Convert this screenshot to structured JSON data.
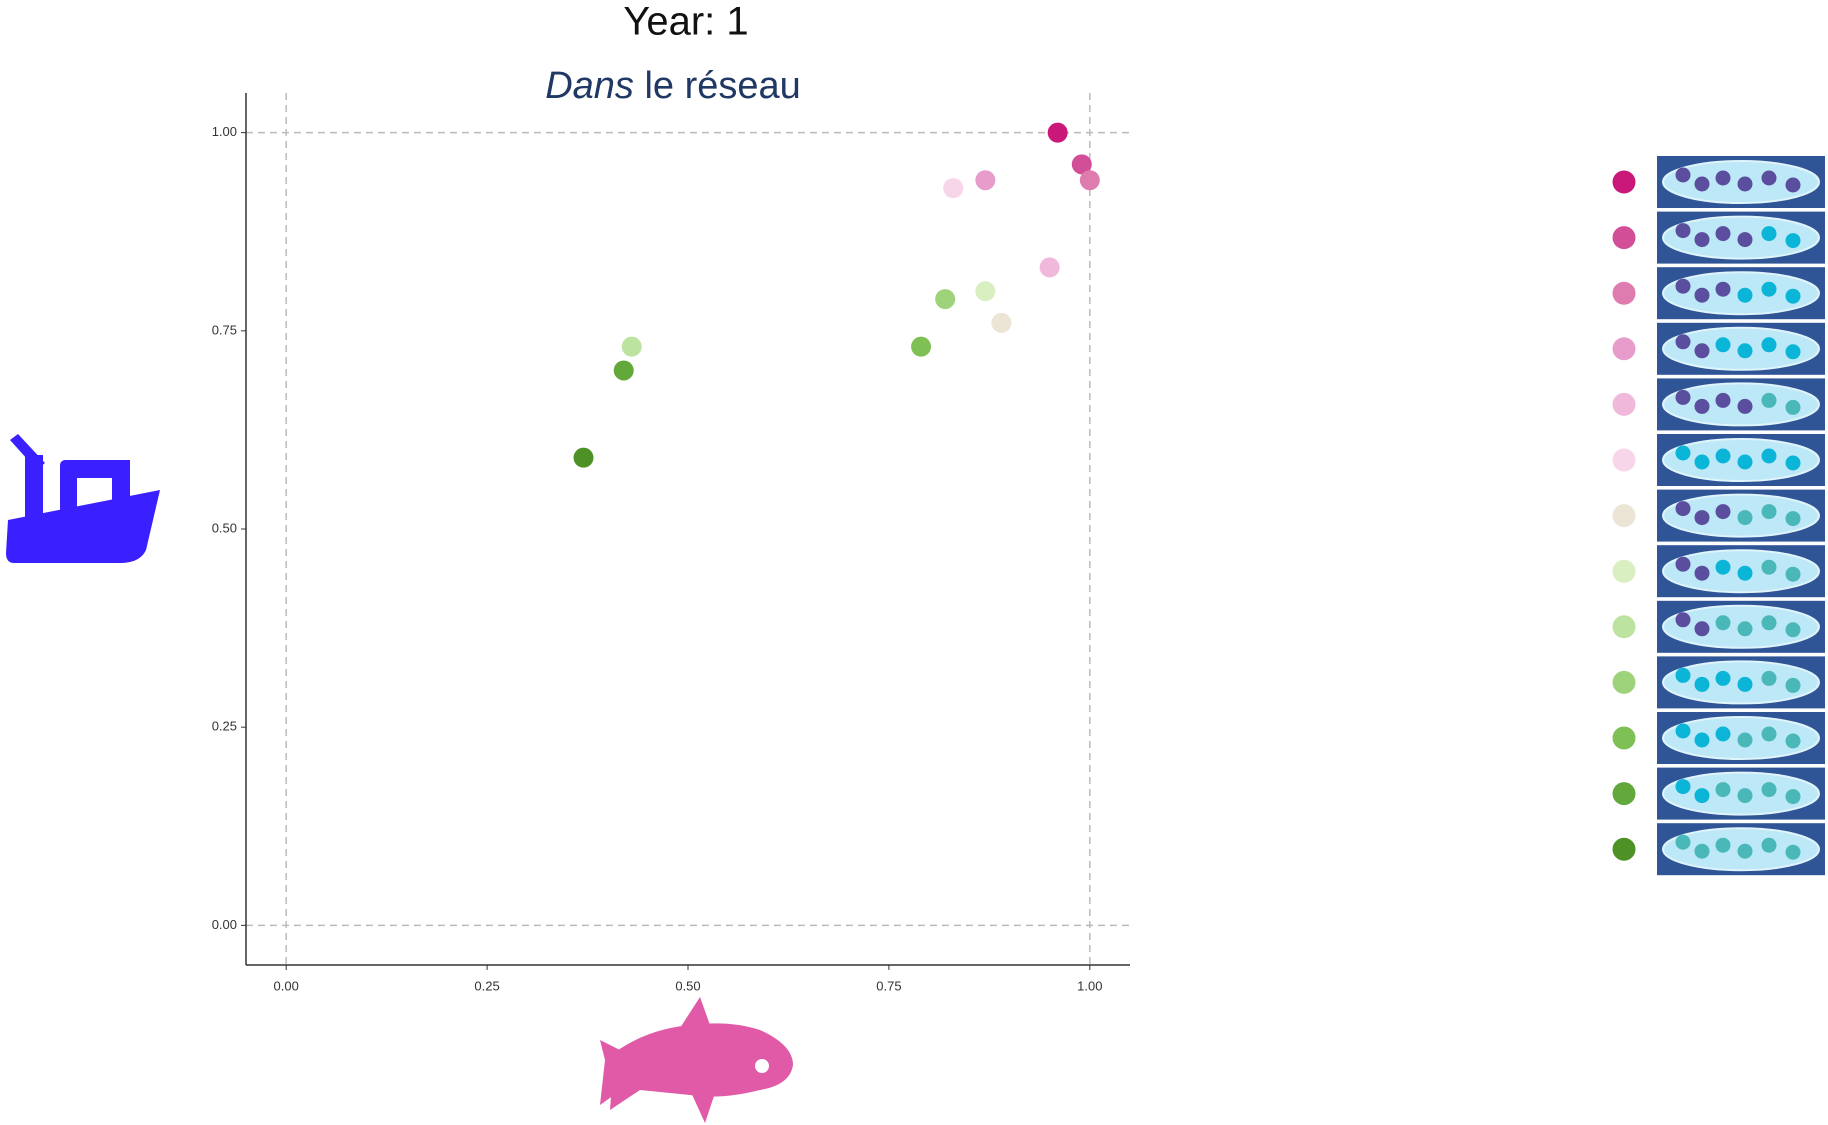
{
  "chart_data": {
    "type": "scatter",
    "title": "Year: 1",
    "subtitle": "Dans le réseau",
    "x": [
      0.96,
      0.99,
      1.0,
      0.87,
      0.95,
      0.83,
      0.89,
      0.87,
      0.43,
      0.82,
      0.79,
      0.42,
      0.37
    ],
    "values": [
      1.0,
      0.96,
      0.94,
      0.94,
      0.83,
      0.93,
      0.76,
      0.8,
      0.73,
      0.79,
      0.73,
      0.7,
      0.59
    ],
    "colors": [
      "#c9177a",
      "#d24e96",
      "#de7cb0",
      "#e79ccb",
      "#f0b8da",
      "#f8d6e9",
      "#ece5d6",
      "#d9efc2",
      "#bde3a0",
      "#9fd37b",
      "#7fc055",
      "#63a83b",
      "#4e9226"
    ],
    "xlim": [
      -0.05,
      1.05
    ],
    "ylim": [
      -0.05,
      1.05
    ],
    "xticks": [
      {
        "value": 0,
        "label": "0.00"
      },
      {
        "value": 0.25,
        "label": "0.25"
      },
      {
        "value": 0.5,
        "label": "0.50"
      },
      {
        "value": 0.75,
        "label": "0.75"
      },
      {
        "value": 1,
        "label": "1.00"
      }
    ],
    "yticks": [
      {
        "value": 0,
        "label": "0.00"
      },
      {
        "value": 0.25,
        "label": "0.25"
      },
      {
        "value": 0.5,
        "label": "0.50"
      },
      {
        "value": 0.75,
        "label": "0.75"
      },
      {
        "value": 1,
        "label": "1.00"
      }
    ],
    "reference_lines": {
      "x": [
        0,
        1
      ],
      "y": [
        0,
        1
      ]
    },
    "grid": false
  }
}
